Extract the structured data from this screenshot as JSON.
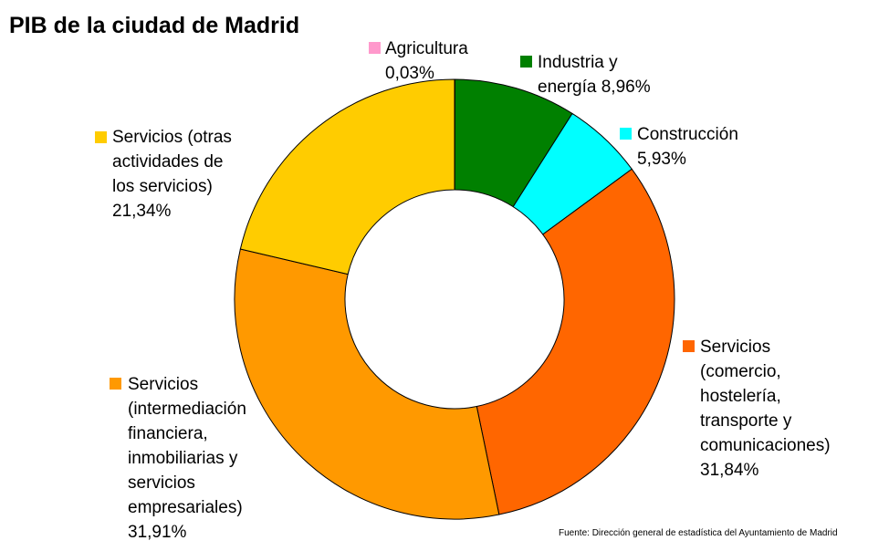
{
  "chart_data": {
    "type": "pie",
    "variant": "donut",
    "title": "PIB de la ciudad de Madrid",
    "slices": [
      {
        "label": "Agricultura",
        "value_text": "0,03%",
        "value": 0.03,
        "color": "#ff99cc"
      },
      {
        "label": "Industria y energía",
        "value_text": "8,96%",
        "value": 8.96,
        "color": "#008000"
      },
      {
        "label": "Construcción",
        "value_text": "5,93%",
        "value": 5.93,
        "color": "#00ffff"
      },
      {
        "label": "Servicios (comercio, hostelería, transporte y comunicaciones)",
        "value_text": "31,84%",
        "value": 31.84,
        "color": "#ff6600"
      },
      {
        "label": "Servicios (intermediación financiera, inmobiliarias y servicios empresariales)",
        "value_text": "31,91%",
        "value": 31.91,
        "color": "#ff9900"
      },
      {
        "label": "Servicios (otras actividades de los servicios)",
        "value_text": "21,34%",
        "value": 21.34,
        "color": "#ffcc00"
      }
    ],
    "label_text": [
      "Agricultura\n0,03%",
      "Industria y\nenergía 8,96%",
      "Construcción\n5,93%",
      "Servicios\n(comercio,\nhostelería,\ntransporte y\ncomunicaciones)\n31,84%",
      "Servicios\n(intermediación\nfinanciera,\ninmobiliarias y\nservicios\nempresariales)\n31,91%",
      "Servicios (otras\nactividades de\nlos servicios)\n21,34%"
    ],
    "source": "Fuente: Dirección general de estadística del Ayuntamiento de Madrid"
  }
}
